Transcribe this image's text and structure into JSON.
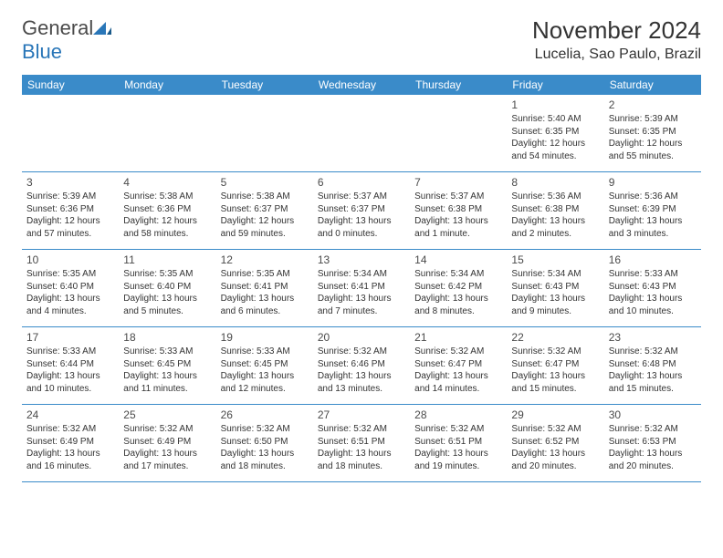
{
  "logo": {
    "text1": "General",
    "text2": "Blue"
  },
  "title": "November 2024",
  "location": "Lucelia, Sao Paulo, Brazil",
  "header_bg": "#3a8bc9",
  "weekdays": [
    "Sunday",
    "Monday",
    "Tuesday",
    "Wednesday",
    "Thursday",
    "Friday",
    "Saturday"
  ],
  "weeks": [
    [
      null,
      null,
      null,
      null,
      null,
      {
        "n": "1",
        "sr": "5:40 AM",
        "ss": "6:35 PM",
        "dl": "12 hours and 54 minutes."
      },
      {
        "n": "2",
        "sr": "5:39 AM",
        "ss": "6:35 PM",
        "dl": "12 hours and 55 minutes."
      }
    ],
    [
      {
        "n": "3",
        "sr": "5:39 AM",
        "ss": "6:36 PM",
        "dl": "12 hours and 57 minutes."
      },
      {
        "n": "4",
        "sr": "5:38 AM",
        "ss": "6:36 PM",
        "dl": "12 hours and 58 minutes."
      },
      {
        "n": "5",
        "sr": "5:38 AM",
        "ss": "6:37 PM",
        "dl": "12 hours and 59 minutes."
      },
      {
        "n": "6",
        "sr": "5:37 AM",
        "ss": "6:37 PM",
        "dl": "13 hours and 0 minutes."
      },
      {
        "n": "7",
        "sr": "5:37 AM",
        "ss": "6:38 PM",
        "dl": "13 hours and 1 minute."
      },
      {
        "n": "8",
        "sr": "5:36 AM",
        "ss": "6:38 PM",
        "dl": "13 hours and 2 minutes."
      },
      {
        "n": "9",
        "sr": "5:36 AM",
        "ss": "6:39 PM",
        "dl": "13 hours and 3 minutes."
      }
    ],
    [
      {
        "n": "10",
        "sr": "5:35 AM",
        "ss": "6:40 PM",
        "dl": "13 hours and 4 minutes."
      },
      {
        "n": "11",
        "sr": "5:35 AM",
        "ss": "6:40 PM",
        "dl": "13 hours and 5 minutes."
      },
      {
        "n": "12",
        "sr": "5:35 AM",
        "ss": "6:41 PM",
        "dl": "13 hours and 6 minutes."
      },
      {
        "n": "13",
        "sr": "5:34 AM",
        "ss": "6:41 PM",
        "dl": "13 hours and 7 minutes."
      },
      {
        "n": "14",
        "sr": "5:34 AM",
        "ss": "6:42 PM",
        "dl": "13 hours and 8 minutes."
      },
      {
        "n": "15",
        "sr": "5:34 AM",
        "ss": "6:43 PM",
        "dl": "13 hours and 9 minutes."
      },
      {
        "n": "16",
        "sr": "5:33 AM",
        "ss": "6:43 PM",
        "dl": "13 hours and 10 minutes."
      }
    ],
    [
      {
        "n": "17",
        "sr": "5:33 AM",
        "ss": "6:44 PM",
        "dl": "13 hours and 10 minutes."
      },
      {
        "n": "18",
        "sr": "5:33 AM",
        "ss": "6:45 PM",
        "dl": "13 hours and 11 minutes."
      },
      {
        "n": "19",
        "sr": "5:33 AM",
        "ss": "6:45 PM",
        "dl": "13 hours and 12 minutes."
      },
      {
        "n": "20",
        "sr": "5:32 AM",
        "ss": "6:46 PM",
        "dl": "13 hours and 13 minutes."
      },
      {
        "n": "21",
        "sr": "5:32 AM",
        "ss": "6:47 PM",
        "dl": "13 hours and 14 minutes."
      },
      {
        "n": "22",
        "sr": "5:32 AM",
        "ss": "6:47 PM",
        "dl": "13 hours and 15 minutes."
      },
      {
        "n": "23",
        "sr": "5:32 AM",
        "ss": "6:48 PM",
        "dl": "13 hours and 15 minutes."
      }
    ],
    [
      {
        "n": "24",
        "sr": "5:32 AM",
        "ss": "6:49 PM",
        "dl": "13 hours and 16 minutes."
      },
      {
        "n": "25",
        "sr": "5:32 AM",
        "ss": "6:49 PM",
        "dl": "13 hours and 17 minutes."
      },
      {
        "n": "26",
        "sr": "5:32 AM",
        "ss": "6:50 PM",
        "dl": "13 hours and 18 minutes."
      },
      {
        "n": "27",
        "sr": "5:32 AM",
        "ss": "6:51 PM",
        "dl": "13 hours and 18 minutes."
      },
      {
        "n": "28",
        "sr": "5:32 AM",
        "ss": "6:51 PM",
        "dl": "13 hours and 19 minutes."
      },
      {
        "n": "29",
        "sr": "5:32 AM",
        "ss": "6:52 PM",
        "dl": "13 hours and 20 minutes."
      },
      {
        "n": "30",
        "sr": "5:32 AM",
        "ss": "6:53 PM",
        "dl": "13 hours and 20 minutes."
      }
    ]
  ],
  "labels": {
    "sunrise": "Sunrise:",
    "sunset": "Sunset:",
    "daylight": "Daylight:"
  }
}
